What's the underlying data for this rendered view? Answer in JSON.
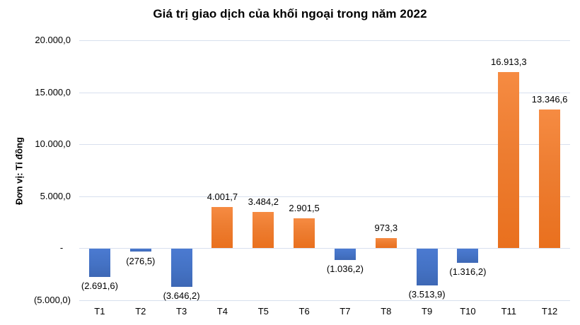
{
  "chart_data": {
    "type": "bar",
    "title": "Giá trị giao dịch của khối ngoại trong năm 2022",
    "unit_label": "Đơn vị: Tỉ đồng",
    "categories": [
      "T1",
      "T2",
      "T3",
      "T4",
      "T5",
      "T6",
      "T7",
      "T8",
      "T9",
      "T10",
      "T11",
      "T12"
    ],
    "values": [
      -2691.6,
      -276.5,
      -3646.2,
      4001.7,
      3484.2,
      2901.5,
      -1036.2,
      973.3,
      -3513.9,
      -1316.2,
      16913.3,
      13346.6
    ],
    "value_labels": [
      "(2.691,6)",
      "(276,5)",
      "(3.646,2)",
      "4.001,7",
      "3.484,2",
      "2.901,5",
      "(1.036,2)",
      "973,3",
      "(3.513,9)",
      "(1.316,2)",
      "16.913,3",
      "13.346,6"
    ],
    "y_ticks": [
      {
        "value": 20000,
        "label": "20.000,0"
      },
      {
        "value": 15000,
        "label": "15.000,0"
      },
      {
        "value": 10000,
        "label": "10.000,0"
      },
      {
        "value": 5000,
        "label": "5.000,0"
      },
      {
        "value": 0,
        "label": "-   "
      },
      {
        "value": -5000,
        "label": "(5.000,0)"
      }
    ],
    "ylim": [
      -5000,
      20000
    ],
    "grid": true,
    "legend_position": "none",
    "colors": {
      "positive_bar": "#ED7D31",
      "positive_bar_light": "#F68B42",
      "positive_bar_dark": "#E9701E",
      "negative_bar": "#4472C4",
      "negative_bar_light": "#4B7AD1",
      "negative_bar_dark": "#3E68B5",
      "gridline": "#D8E0EE",
      "text": "#000000",
      "background": "#FFFFFF"
    }
  }
}
